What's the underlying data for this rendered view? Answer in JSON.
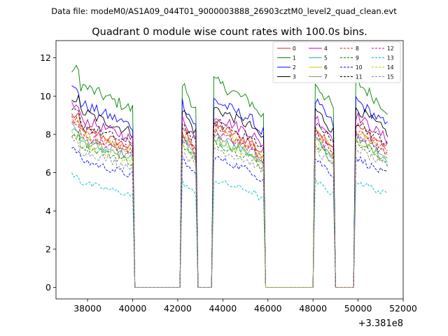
{
  "chart_data": {
    "type": "line",
    "suptitle": "Data file: modeM0/AS1A09_044T01_9000003888_26903cztM0_level2_quad_clean.evt",
    "title": "Quadrant 0 module wise count rates with 100.0s bins.",
    "xlabel": "",
    "ylabel": "",
    "x_offset_label": "+3.381e8",
    "xlim": [
      36600,
      52000
    ],
    "ylim": [
      -0.6,
      12.9
    ],
    "xticks": [
      38000,
      40000,
      42000,
      44000,
      46000,
      48000,
      50000,
      52000
    ],
    "xtick_labels": [
      "38000",
      "40000",
      "42000",
      "44000",
      "46000",
      "48000",
      "50000",
      "52000"
    ],
    "yticks": [
      0,
      2,
      4,
      6,
      8,
      10,
      12
    ],
    "ytick_labels": [
      "0",
      "2",
      "4",
      "6",
      "8",
      "10",
      "12"
    ],
    "legend_position": "upper right",
    "segments": [
      {
        "start": 37300,
        "end": 40000
      },
      {
        "start": 42150,
        "end": 42800
      },
      {
        "start": 43600,
        "end": 45800
      },
      {
        "start": 48050,
        "end": 48950
      },
      {
        "start": 49900,
        "end": 51300
      }
    ],
    "series": [
      {
        "name": "0",
        "color": "#e41a1c",
        "dash": "solid",
        "level": 8.5
      },
      {
        "name": "1",
        "color": "#008000",
        "dash": "solid",
        "level": 10.8
      },
      {
        "name": "2",
        "color": "#0000ff",
        "dash": "solid",
        "level": 9.8
      },
      {
        "name": "3",
        "color": "#000000",
        "dash": "solid",
        "level": 9.4
      },
      {
        "name": "4",
        "color": "#bf00bf",
        "dash": "solid",
        "level": 9.0
      },
      {
        "name": "5",
        "color": "#17c2a0",
        "dash": "solid",
        "level": 7.8
      },
      {
        "name": "6",
        "color": "#c8c800",
        "dash": "solid",
        "level": 8.2
      },
      {
        "name": "7",
        "color": "#8c8c8c",
        "dash": "solid",
        "level": 7.9
      },
      {
        "name": "8",
        "color": "#e41a1c",
        "dash": "dashed",
        "level": 8.3
      },
      {
        "name": "9",
        "color": "#008000",
        "dash": "dashed",
        "level": 7.6
      },
      {
        "name": "10",
        "color": "#0000ff",
        "dash": "dashed",
        "level": 6.8
      },
      {
        "name": "11",
        "color": "#000000",
        "dash": "dashed",
        "level": 8.7
      },
      {
        "name": "12",
        "color": "#bf00bf",
        "dash": "dashed",
        "level": 8.1
      },
      {
        "name": "13",
        "color": "#00bfbf",
        "dash": "dashed",
        "level": 5.6
      },
      {
        "name": "14",
        "color": "#c8c800",
        "dash": "dashed",
        "level": 7.7
      },
      {
        "name": "15",
        "color": "#8c8c8c",
        "dash": "dashed",
        "level": 7.3
      }
    ]
  }
}
